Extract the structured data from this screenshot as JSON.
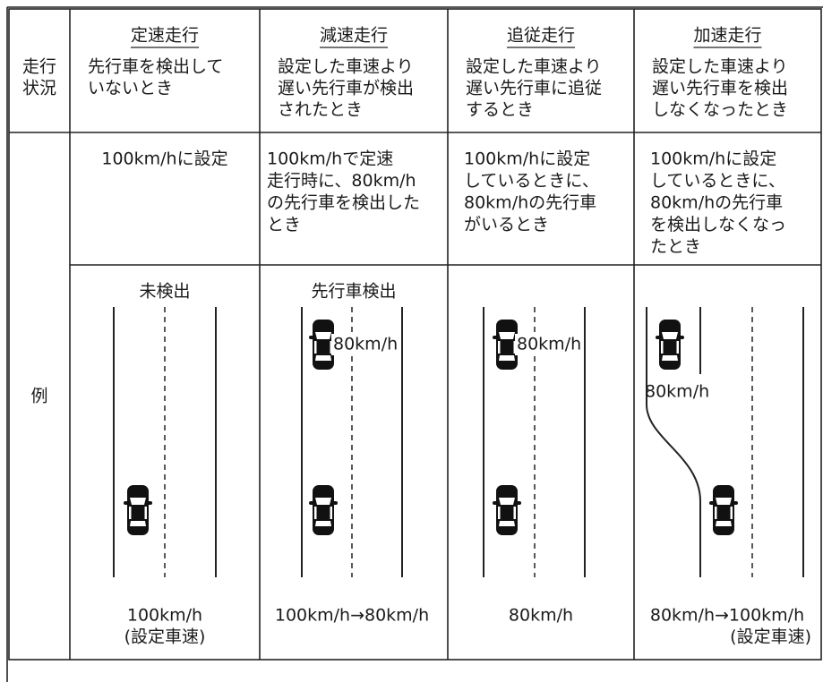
{
  "table": {
    "header": {
      "row_label": [
        "走行",
        "状況"
      ],
      "columns": [
        {
          "title": "定速走行",
          "description": [
            "先行車を検出して",
            "いないとき"
          ]
        },
        {
          "title": "減速走行",
          "description": [
            "設定した車速より",
            "遅い先行車が検出",
            "されたとき"
          ]
        },
        {
          "title": "追従走行",
          "description": [
            "設定した車速より",
            "遅い先行車に追従",
            "するとき"
          ]
        },
        {
          "title": "加速走行",
          "description": [
            "設定した車速より",
            "遅い先行車を検出",
            "しなくなったとき"
          ]
        }
      ]
    },
    "example": {
      "row_label": "例",
      "conditions": [
        [
          "100km/hに設定"
        ],
        [
          "100km/hで定速",
          "走行時に、80km/h",
          "の先行車を検出した",
          "とき"
        ],
        [
          "100km/hに設定",
          "しているときに、",
          "80km/hの先行車",
          "がいるとき"
        ],
        [
          "100km/hに設定",
          "しているときに、",
          "80km/hの先行車",
          "を検出しなくなっ",
          "たとき"
        ]
      ],
      "scenes": [
        {
          "label": "未検出",
          "speeds": [
            "100km/h",
            "(設定車速)"
          ]
        },
        {
          "label": "先行車検出",
          "lead_speed": "80km/h",
          "speeds": [
            "100km/h→80km/h"
          ]
        },
        {
          "lead_speed": "80km/h",
          "speeds": [
            "80km/h"
          ]
        },
        {
          "lead_speed": "80km/h",
          "speeds": [
            "80km/h→100km/h",
            "(設定車速)"
          ]
        }
      ]
    }
  }
}
